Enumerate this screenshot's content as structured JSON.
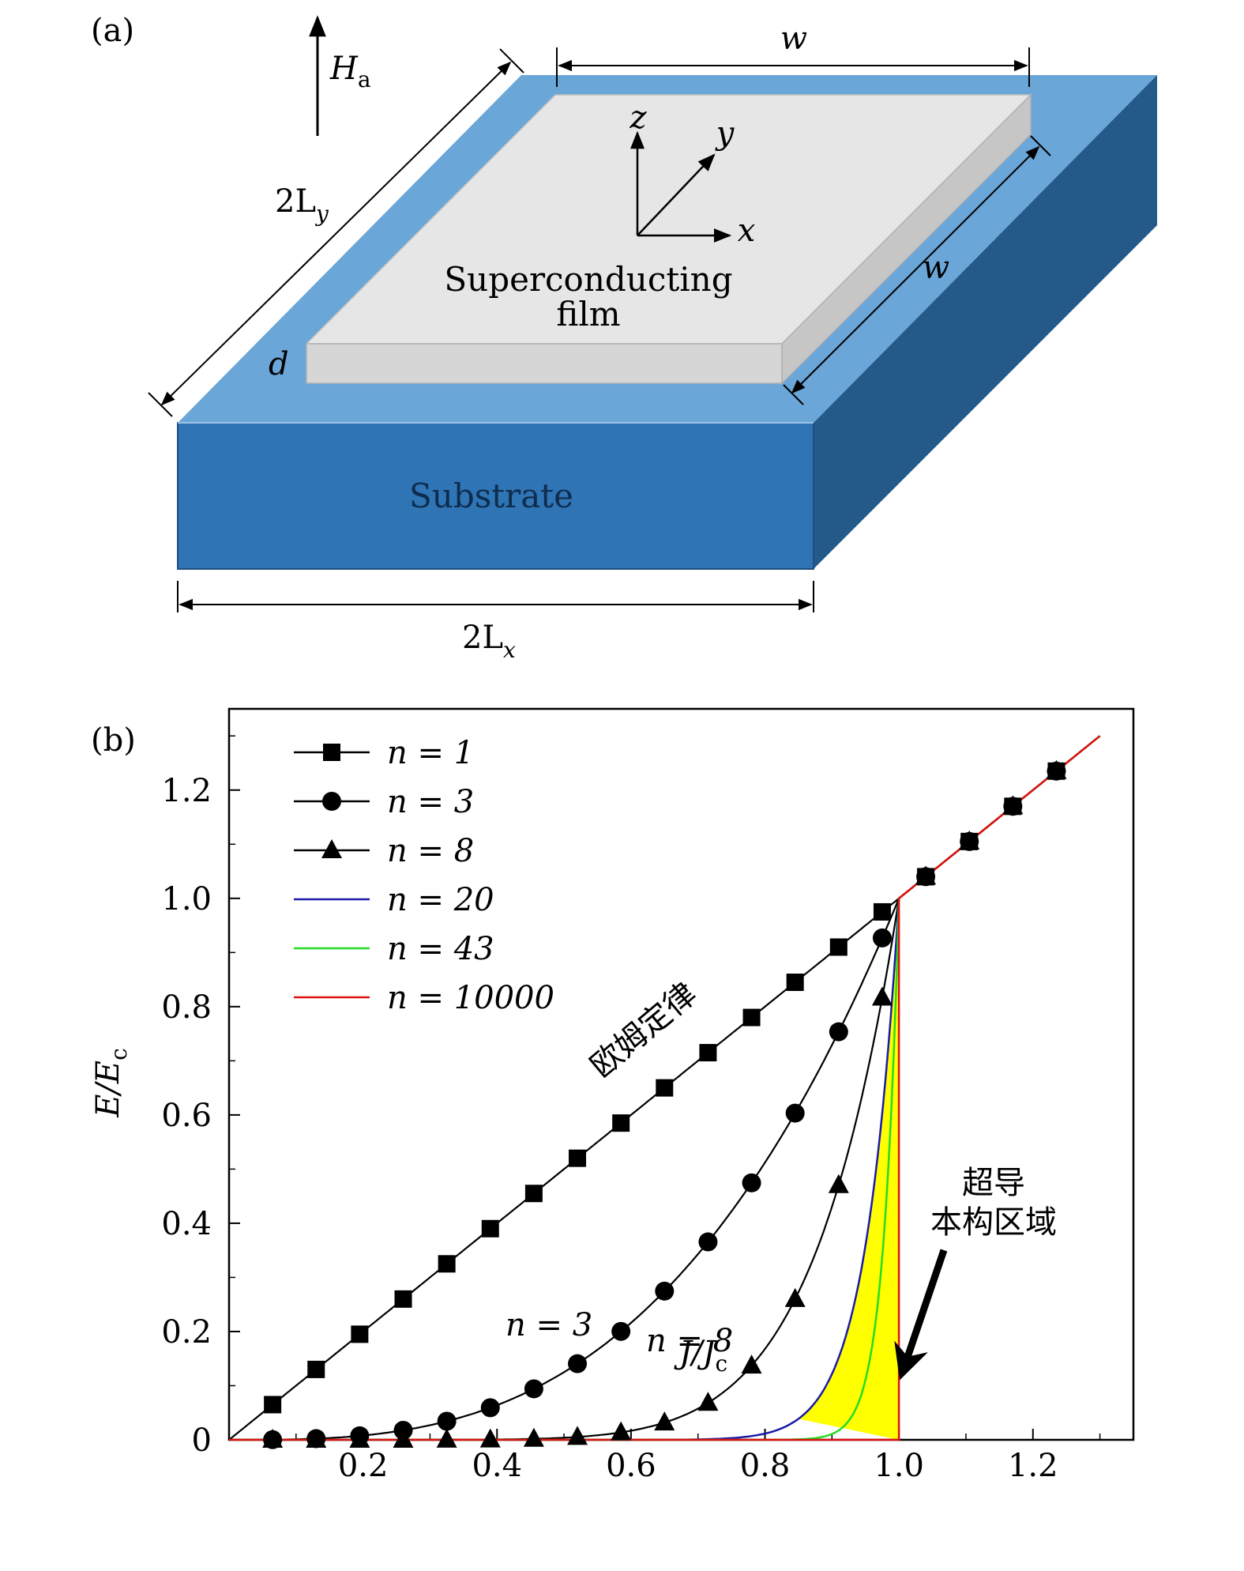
{
  "panel_a": {
    "label": "(a)",
    "field_label": "H",
    "field_sub": "a",
    "width_top": "w",
    "width_side": "w",
    "length_y": "2L",
    "length_y_sub": "y",
    "length_x": "2L",
    "length_x_sub": "x",
    "thickness": "d",
    "film_line1": "Superconducting",
    "film_line2": "film",
    "substrate": "Substrate",
    "axis_z": "z",
    "axis_y": "y",
    "axis_x": "x",
    "colors": {
      "substrate_top": "#6aa6d8",
      "substrate_front": "#2f74b5",
      "substrate_side": "#245a8a",
      "film_top": "#e6e6e6",
      "film_edge": "#c8c8c8"
    }
  },
  "panel_b": {
    "label": "(b)",
    "annotation_ohm": "欧姆定律",
    "annotation_sc_line1": "超导",
    "annotation_sc_line2": "本构区域",
    "annotation_n3": "n = 3",
    "annotation_n8": "n = 8"
  },
  "chart_data": {
    "type": "line",
    "xlabel": "J/J",
    "xlabel_sub": "c",
    "ylabel": "E/E",
    "ylabel_sub": "c",
    "xlim": [
      0,
      1.35
    ],
    "ylim": [
      0,
      1.35
    ],
    "x_ticks": [
      "0.2",
      "0.4",
      "0.6",
      "0.8",
      "1.0",
      "1.2"
    ],
    "y_ticks": [
      "0",
      "0.2",
      "0.4",
      "0.6",
      "0.8",
      "1.0",
      "1.2"
    ],
    "legend_position": "top-left",
    "series": [
      {
        "name": "n = 1",
        "n": 1,
        "marker": "square",
        "color": "#000000"
      },
      {
        "name": "n = 3",
        "n": 3,
        "marker": "circle",
        "color": "#000000"
      },
      {
        "name": "n = 8",
        "n": 8,
        "marker": "triangle",
        "color": "#000000"
      },
      {
        "name": "n = 20",
        "n": 20,
        "marker": "none",
        "color": "#1a1aa8"
      },
      {
        "name": "n = 43",
        "n": 43,
        "marker": "none",
        "color": "#22dd22"
      },
      {
        "name": "n = 10000",
        "n": 10000,
        "marker": "none",
        "color": "#e01010"
      }
    ],
    "marker_x": [
      0.065,
      0.13,
      0.195,
      0.26,
      0.325,
      0.39,
      0.455,
      0.52,
      0.585,
      0.65,
      0.715,
      0.78,
      0.845,
      0.91,
      0.975,
      1.04,
      1.105,
      1.17,
      1.235
    ],
    "shaded_region": {
      "from_n": 20,
      "to_n": 10000,
      "color": "#ffff00"
    }
  }
}
